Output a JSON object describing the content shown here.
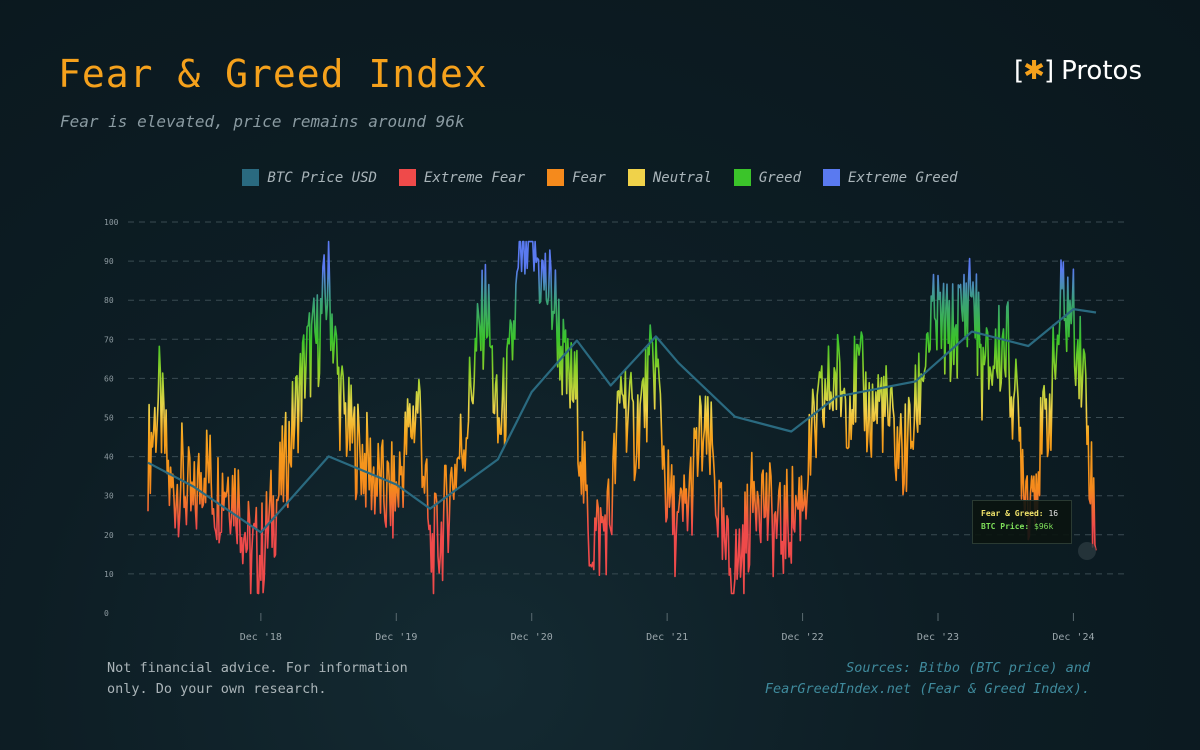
{
  "header": {
    "title": "Fear & Greed Index",
    "subtitle": "Fear is elevated, price remains around 96k",
    "brand_name": "Protos",
    "brand_mark": "[✱]"
  },
  "footer": {
    "disclaimer_line1": "Not financial advice. For information",
    "disclaimer_line2": "only. Do your own research.",
    "sources_line1": "Sources: Bitbo (BTC price) and",
    "sources_line2": "FearGreedIndex.net (Fear & Greed Index)."
  },
  "tooltip": {
    "label1": "Fear & Greed:",
    "value1": "16",
    "label2": "BTC Price:",
    "value2": "$96k"
  },
  "colors": {
    "btc": "#2a6a80",
    "extreme_fear": "#ef4a4a",
    "fear": "#f58a1c",
    "neutral": "#f0d24a",
    "greed": "#3bc42a",
    "extreme_greed": "#5a7af0",
    "title": "#f5a11c"
  },
  "chart_data": {
    "type": "line",
    "title": "Fear & Greed Index",
    "subtitle": "Fear is elevated, price remains around 96k",
    "ylim": [
      0,
      100
    ],
    "y_ticks": [
      0,
      10,
      20,
      30,
      40,
      50,
      60,
      70,
      80,
      90,
      100
    ],
    "x_tick_labels": [
      "Dec '18",
      "Dec '19",
      "Dec '20",
      "Dec '21",
      "Dec '22",
      "Dec '23",
      "Dec '24"
    ],
    "x_range": [
      "2018-02",
      "2025-02"
    ],
    "grid": "horizontal dashed",
    "legend": [
      {
        "name": "BTC Price USD",
        "color": "#2a6a80"
      },
      {
        "name": "Extreme Fear",
        "color": "#ef4a4a"
      },
      {
        "name": "Fear",
        "color": "#f58a1c"
      },
      {
        "name": "Neutral",
        "color": "#f0d24a"
      },
      {
        "name": "Greed",
        "color": "#3bc42a"
      },
      {
        "name": "Extreme Greed",
        "color": "#5a7af0"
      }
    ],
    "series": [
      {
        "name": "Fear & Greed",
        "x": [
          "2018-02",
          "2018-03",
          "2018-04",
          "2018-05",
          "2018-06",
          "2018-07",
          "2018-08",
          "2018-09",
          "2018-10",
          "2018-11",
          "2018-12",
          "2019-01",
          "2019-02",
          "2019-03",
          "2019-04",
          "2019-05",
          "2019-06",
          "2019-07",
          "2019-08",
          "2019-09",
          "2019-10",
          "2019-11",
          "2019-12",
          "2020-01",
          "2020-02",
          "2020-03",
          "2020-04",
          "2020-05",
          "2020-06",
          "2020-07",
          "2020-08",
          "2020-09",
          "2020-10",
          "2020-11",
          "2020-12",
          "2021-01",
          "2021-02",
          "2021-03",
          "2021-04",
          "2021-05",
          "2021-06",
          "2021-07",
          "2021-08",
          "2021-09",
          "2021-10",
          "2021-11",
          "2021-12",
          "2022-01",
          "2022-02",
          "2022-03",
          "2022-04",
          "2022-05",
          "2022-06",
          "2022-07",
          "2022-08",
          "2022-09",
          "2022-10",
          "2022-11",
          "2022-12",
          "2023-01",
          "2023-02",
          "2023-03",
          "2023-04",
          "2023-05",
          "2023-06",
          "2023-07",
          "2023-08",
          "2023-09",
          "2023-10",
          "2023-11",
          "2023-12",
          "2024-01",
          "2024-02",
          "2024-03",
          "2024-04",
          "2024-05",
          "2024-06",
          "2024-07",
          "2024-08",
          "2024-09",
          "2024-10",
          "2024-11",
          "2024-12",
          "2025-01",
          "2025-02"
        ],
        "values": [
          40,
          55,
          30,
          35,
          25,
          40,
          30,
          35,
          30,
          15,
          15,
          25,
          35,
          50,
          65,
          70,
          85,
          55,
          45,
          40,
          35,
          30,
          30,
          45,
          55,
          15,
          20,
          35,
          45,
          65,
          80,
          45,
          60,
          90,
          95,
          85,
          80,
          60,
          55,
          20,
          20,
          25,
          60,
          45,
          55,
          65,
          30,
          20,
          30,
          45,
          40,
          15,
          10,
          20,
          35,
          25,
          20,
          25,
          30,
          45,
          55,
          60,
          55,
          60,
          50,
          55,
          45,
          40,
          50,
          70,
          75,
          70,
          75,
          85,
          60,
          65,
          70,
          50,
          30,
          40,
          55,
          80,
          75,
          60,
          16
        ]
      },
      {
        "name": "BTC Price USD",
        "x": [
          "2018-02",
          "2018-06",
          "2018-12",
          "2019-06",
          "2019-12",
          "2020-03",
          "2020-09",
          "2020-12",
          "2021-04",
          "2021-07",
          "2021-11",
          "2022-01",
          "2022-06",
          "2022-11",
          "2023-03",
          "2023-10",
          "2024-03",
          "2024-08",
          "2024-12",
          "2025-02"
        ],
        "values_usd_k": [
          10,
          7,
          3.5,
          11,
          7.2,
          5,
          10.5,
          29,
          63,
          32,
          67,
          45,
          20,
          16,
          27,
          34,
          72,
          58,
          101,
          96
        ]
      }
    ],
    "annotation": {
      "fear_greed": 16,
      "btc_price": "$96k"
    }
  }
}
